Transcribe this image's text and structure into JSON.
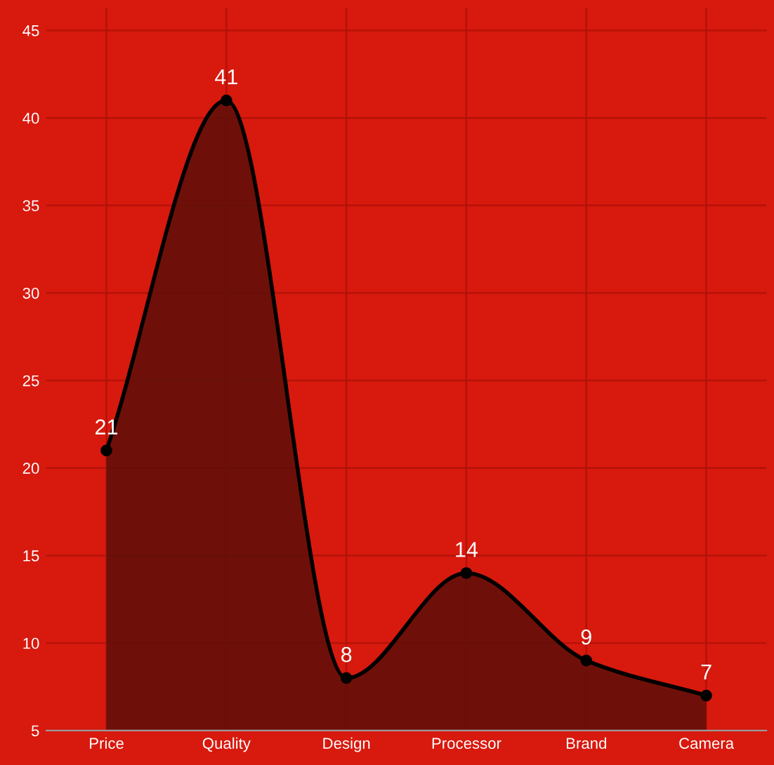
{
  "chart_data": {
    "type": "area",
    "categories": [
      "Price",
      "Quality",
      "Design",
      "Processor",
      "Brand",
      "Camera"
    ],
    "series": [
      {
        "color": "#5c0f08",
        "values": [
          21,
          41,
          8,
          14,
          9,
          7
        ]
      }
    ],
    "ylim": [
      5,
      46.3
    ],
    "yticks": [
      5,
      10,
      15,
      20,
      25,
      30,
      35,
      40,
      45
    ],
    "grid": true,
    "marker": "circle",
    "line_style": "solid",
    "data_labels": true
  }
}
